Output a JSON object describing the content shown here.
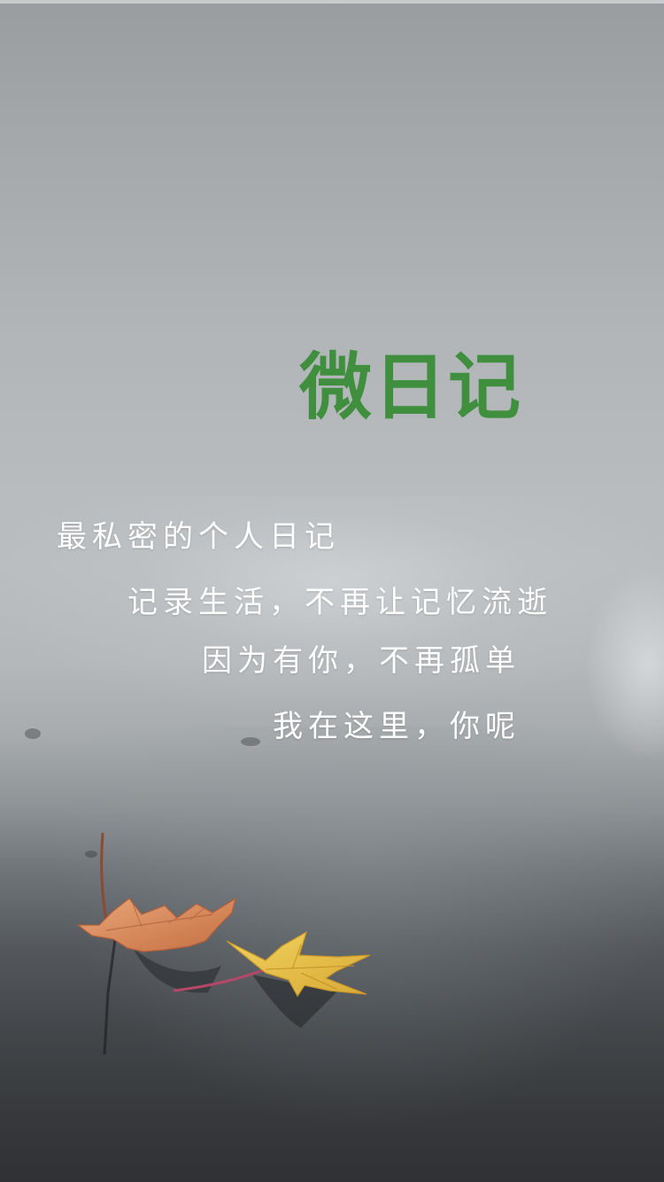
{
  "app": {
    "title": "微日记",
    "title_color": "#3f8f3f"
  },
  "tagline": {
    "lines": [
      "最私密的个人日记",
      "记录生活，不再让记忆流逝",
      "因为有你，不再孤单",
      "我在这里，你呢"
    ],
    "text_color": "#ffffff"
  },
  "background": {
    "sky_color": "#b7bbbd",
    "ground_color": "#37393c",
    "leaf_colors": [
      "#d98b5e",
      "#e8c24a"
    ]
  }
}
